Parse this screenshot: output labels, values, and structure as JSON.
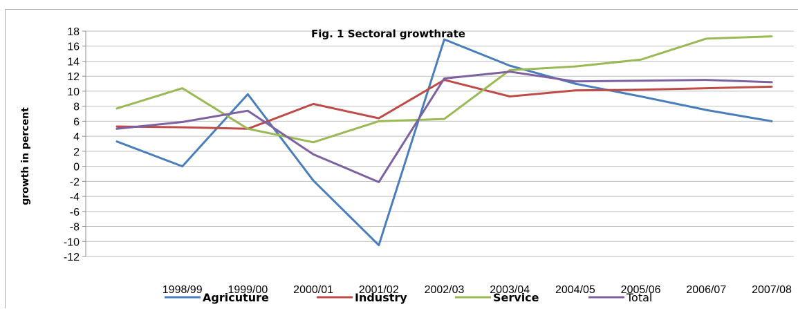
{
  "chart_data": {
    "type": "line",
    "title": "Fig. 1 Sectoral growthrate",
    "xlabel": "",
    "ylabel": "growth in percent",
    "categories": [
      "",
      "1998/99",
      "1999/00",
      "2000/01",
      "2001/02",
      "2002/03",
      "2003/04",
      "2004/05",
      "2005/06",
      "2006/07",
      "2007/08"
    ],
    "ylim": [
      -12,
      18
    ],
    "yticks": [
      18,
      16,
      14,
      12,
      10,
      8,
      6,
      4,
      2,
      0,
      -2,
      -4,
      -6,
      -8,
      -10,
      -12
    ],
    "grid": true,
    "legend_position": "bottom",
    "series": [
      {
        "name": "Agricuture",
        "color": "#4a7ebb",
        "values": [
          3.3,
          0.0,
          9.6,
          -1.9,
          -10.5,
          16.9,
          13.4,
          11.0,
          9.3,
          7.5,
          6.0
        ]
      },
      {
        "name": "Industry",
        "color": "#be4b48",
        "values": [
          5.3,
          5.2,
          5.0,
          8.3,
          6.4,
          11.5,
          9.3,
          10.1,
          10.2,
          10.4,
          10.6
        ]
      },
      {
        "name": "Service",
        "color": "#98b954",
        "values": [
          7.7,
          10.4,
          5.0,
          3.2,
          6.0,
          6.3,
          12.8,
          13.3,
          14.2,
          17.0,
          17.3
        ]
      },
      {
        "name": "Total",
        "color": "#7d60a0",
        "values": [
          5.0,
          5.9,
          7.4,
          1.6,
          -2.1,
          11.7,
          12.6,
          11.3,
          11.4,
          11.5,
          11.2
        ]
      }
    ]
  }
}
